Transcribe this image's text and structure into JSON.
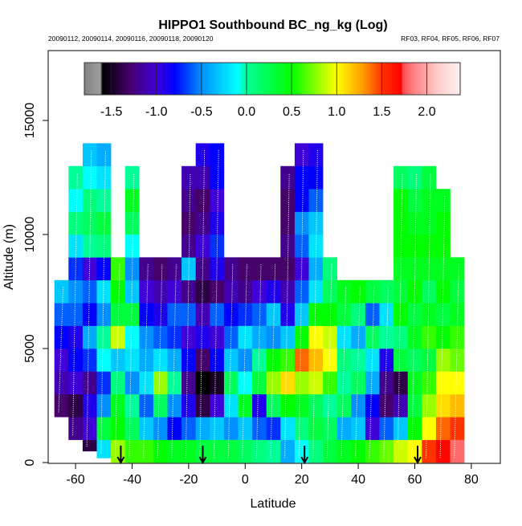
{
  "chart_data": {
    "type": "heatmap",
    "title": "HIPPO1 Southbound BC_ng_kg (Log)",
    "subtitle_left": "20090112, 20090114, 20090116, 20090118, 20090120",
    "subtitle_right": "RF03, RF04, RF05, RF06, RF07",
    "xlabel": "Latitude",
    "ylabel": "Altitude (m)",
    "xlim": [
      -70,
      90
    ],
    "ylim": [
      0,
      18000
    ],
    "xticks": [
      -60,
      -40,
      -20,
      0,
      20,
      40,
      60,
      80
    ],
    "xtick_labels": [
      "-60",
      "-40",
      "-20",
      "0",
      "20",
      "40",
      "60",
      "80"
    ],
    "yticks": [
      0,
      5000,
      10000,
      15000
    ],
    "ytick_labels": [
      "0",
      "5000",
      "10000",
      "15000"
    ],
    "colorbar": {
      "range": [
        -1.8,
        2.37
      ],
      "ticks": [
        -1.5,
        -1.0,
        -0.5,
        0.0,
        0.5,
        1.0,
        1.5,
        2.0
      ],
      "tick_labels": [
        "-1.5",
        "-1.0",
        "-0.5",
        "0.0",
        "0.5",
        "1.0",
        "1.5",
        "2.0"
      ],
      "placement": "top-inside",
      "colors": [
        "#808080",
        "#000000",
        "#50007f",
        "#3f00e0",
        "#0000ff",
        "#0090ff",
        "#00ffff",
        "#00ff80",
        "#00ff00",
        "#ffff00",
        "#ff9900",
        "#ff0000",
        "#ff5050",
        "#ff9090",
        "#ffc8c8",
        "#ffe8e8"
      ]
    },
    "cell_lat_width": 5,
    "cell_alt_height": 1000,
    "arrow_latitudes": [
      -44,
      -15,
      21,
      61
    ],
    "columns": [
      {
        "lat": -65,
        "bottom": 2000,
        "values": [
          null,
          null,
          -1.3,
          -1.1,
          -1.0,
          -0.8,
          -0.6,
          -0.3
        ]
      },
      {
        "lat": -60,
        "bottom": 1000,
        "values": [
          null,
          -1.2,
          -1.4,
          -1.0,
          -0.8,
          -0.9,
          -0.6,
          -0.5,
          -0.7,
          -0.2,
          0.1,
          -0.1,
          0.0
        ]
      },
      {
        "lat": -55,
        "bottom": 500,
        "values": [
          -1.4,
          -1.0,
          -0.9,
          -1.2,
          -0.7,
          -0.4,
          -0.8,
          -0.6,
          -1.0,
          0.0,
          0.2,
          0.1,
          -0.1,
          -0.3
        ]
      },
      {
        "lat": -50,
        "bottom": 200,
        "values": [
          -0.2,
          0.3,
          -0.5,
          -0.7,
          -0.1,
          0.0,
          -0.5,
          -0.2,
          -0.8,
          0.1,
          0.3,
          0.0,
          -0.2,
          -0.4
        ]
      },
      {
        "lat": -45,
        "bottom": 0,
        "values": [
          0.8,
          0.5,
          0.4,
          0.1,
          -0.3,
          0.9,
          0.3,
          0.5,
          0.6
        ]
      },
      {
        "lat": -40,
        "bottom": 0,
        "values": [
          0.6,
          0.2,
          0.0,
          -0.5,
          -0.2,
          -0.1,
          0.3,
          -0.3,
          -0.5,
          -0.1,
          0.2,
          0.4,
          0.0
        ]
      },
      {
        "lat": -35,
        "bottom": 0,
        "values": [
          0.6,
          -0.3,
          -0.6,
          -0.2,
          -0.4,
          -0.5,
          -0.8,
          -1.0,
          -1.2
        ]
      },
      {
        "lat": -30,
        "bottom": 0,
        "values": [
          0.5,
          -0.5,
          0.2,
          0.8,
          -0.2,
          -0.6,
          -0.9,
          -1.1,
          -1.3
        ]
      },
      {
        "lat": -25,
        "bottom": 0,
        "values": [
          0.4,
          -0.8,
          -0.5,
          0.0,
          -0.4,
          -0.7,
          -0.6,
          -1.0,
          -1.2
        ]
      },
      {
        "lat": -20,
        "bottom": 0,
        "values": [
          0.4,
          -0.6,
          -0.9,
          -1.2,
          -0.8,
          -1.0,
          -0.6,
          -1.2,
          -0.3,
          -1.2,
          -1.3,
          -1.2,
          -1.1
        ]
      },
      {
        "lat": -15,
        "bottom": 0,
        "values": [
          0.3,
          -0.4,
          -1.4,
          -1.6,
          -1.3,
          -0.9,
          -1.1,
          -1.4,
          -1.2,
          -1.0,
          -1.2,
          -1.3,
          -1.1,
          -0.9
        ]
      },
      {
        "lat": -10,
        "bottom": 0,
        "values": [
          0.3,
          -0.3,
          -1.0,
          -1.5,
          -0.8,
          -1.0,
          -0.6,
          -1.3,
          -0.9,
          -0.7,
          -0.9,
          -1.0,
          -0.8,
          -0.8
        ]
      },
      {
        "lat": -5,
        "bottom": 0,
        "values": [
          0.3,
          -0.5,
          -0.2,
          0.2,
          -0.3,
          -0.6,
          -0.8,
          -1.1,
          -1.2
        ]
      },
      {
        "lat": 0,
        "bottom": 0,
        "values": [
          0.2,
          -0.3,
          0.4,
          -0.1,
          -0.5,
          -0.2,
          -0.7,
          -1.2,
          -1.3
        ]
      },
      {
        "lat": 5,
        "bottom": 0,
        "values": [
          0.1,
          -0.6,
          -0.9,
          0.3,
          0.0,
          -0.4,
          -0.6,
          -1.0,
          -1.3
        ]
      },
      {
        "lat": 10,
        "bottom": 0,
        "values": [
          0.0,
          -0.7,
          0.2,
          0.8,
          0.5,
          -0.5,
          -0.3,
          -0.9,
          -1.3
        ]
      },
      {
        "lat": 15,
        "bottom": 0,
        "values": [
          -0.4,
          -0.2,
          0.5,
          1.1,
          0.6,
          -0.3,
          -0.9,
          -1.1,
          -1.3,
          -1.2,
          -1.3,
          -1.3,
          -1.2
        ]
      },
      {
        "lat": 20,
        "bottom": 0,
        "values": [
          -0.1,
          0.1,
          0.4,
          0.8,
          1.4,
          0.5,
          -0.3,
          -0.6,
          -1.0,
          -0.6,
          -0.5,
          -0.8,
          -0.8,
          -1.0
        ]
      },
      {
        "lat": 25,
        "bottom": 0,
        "values": [
          0.1,
          0.3,
          0.2,
          0.9,
          1.2,
          1.0,
          0.5,
          -0.2,
          -0.4,
          -0.2,
          -0.3,
          -0.6,
          -0.8,
          -0.9
        ]
      },
      {
        "lat": 30,
        "bottom": 0,
        "values": [
          0.3,
          0.2,
          0.0,
          0.6,
          1.0,
          0.9,
          0.5,
          0.2,
          0.1
        ]
      },
      {
        "lat": 35,
        "bottom": 0,
        "values": [
          0.4,
          -0.4,
          0.2,
          0.0,
          0.1,
          -0.2,
          0.3,
          0.4
        ]
      },
      {
        "lat": 40,
        "bottom": 0,
        "values": [
          0.5,
          -0.3,
          -0.5,
          0.2,
          0.0,
          -0.4,
          0.1,
          0.5
        ]
      },
      {
        "lat": 45,
        "bottom": 0,
        "values": [
          0.6,
          -1.0,
          -0.8,
          -0.4,
          -0.2,
          0.2,
          -0.6,
          0.3
        ]
      },
      {
        "lat": 50,
        "bottom": 0,
        "values": [
          0.7,
          -0.6,
          -1.3,
          -1.2,
          -0.9,
          0.0,
          -0.2,
          0.2
        ]
      },
      {
        "lat": 55,
        "bottom": 0,
        "values": [
          0.9,
          -0.3,
          -1.1,
          -1.4,
          0.3,
          0.1,
          0.5,
          0.3,
          0.4,
          0.5,
          0.5,
          0.5,
          0.2
        ]
      },
      {
        "lat": 60,
        "bottom": 0,
        "values": [
          1.0,
          0.5,
          0.3,
          0.4,
          0.2,
          0.4,
          0.3,
          0.5,
          0.4,
          0.5,
          0.4,
          0.3,
          0.1
        ]
      },
      {
        "lat": 65,
        "bottom": 0,
        "values": [
          1.5,
          1.0,
          0.8,
          0.6,
          0.3,
          0.6,
          0.4,
          0.2,
          0.4,
          0.5,
          0.4,
          0.4,
          0.3
        ]
      },
      {
        "lat": 70,
        "bottom": 0,
        "values": [
          1.7,
          1.4,
          1.1,
          1.0,
          0.8,
          0.5,
          0.3,
          0.5,
          0.4,
          0.5,
          0.5,
          0.4
        ]
      },
      {
        "lat": 75,
        "bottom": 0,
        "values": [
          1.8,
          1.5,
          1.2,
          1.0,
          0.7,
          0.6,
          0.4,
          0.3,
          0.4
        ]
      }
    ]
  }
}
